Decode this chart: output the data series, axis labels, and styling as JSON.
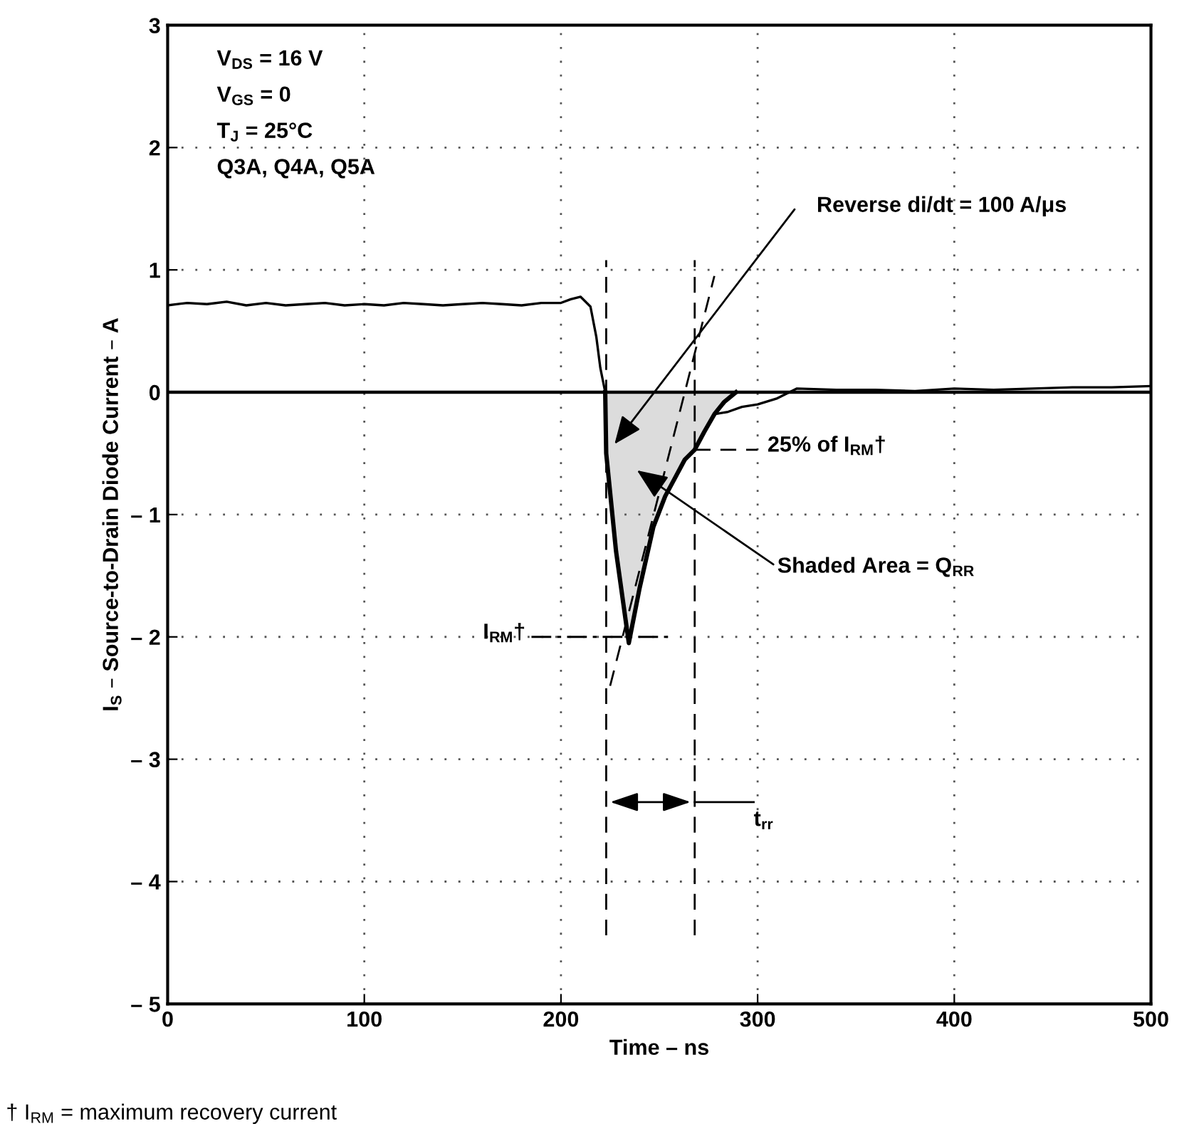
{
  "chart_data": {
    "type": "line",
    "xlabel": "Time – ns",
    "ylabel": "I$_{S}$ – Source-to-Drain Diode Current – A",
    "xlim": [
      0,
      500
    ],
    "ylim": [
      -5,
      3
    ],
    "xticks": [
      0,
      100,
      200,
      300,
      400,
      500
    ],
    "yticks": [
      {
        "value": -5,
        "label": "– 5"
      },
      {
        "value": -4,
        "label": "– 4"
      },
      {
        "value": -3,
        "label": "– 3"
      },
      {
        "value": -2,
        "label": "– 2"
      },
      {
        "value": -1,
        "label": "– 1"
      },
      0,
      1,
      2,
      3
    ],
    "grid": true,
    "series": [
      {
        "type": "area",
        "color": "#dcdcdc",
        "x": [
          222.5,
          223,
          228,
          234.5,
          240,
          247,
          253,
          258,
          263,
          268,
          273,
          278,
          283,
          289
        ],
        "values": [
          0,
          -0.5,
          -1.3,
          -2.05,
          -1.6,
          -1.1,
          -0.85,
          -0.7,
          -0.55,
          -0.47,
          -0.32,
          -0.18,
          -0.08,
          0
        ]
      },
      {
        "color": "#000000",
        "x": [
          0,
          10,
          20,
          30,
          40,
          50,
          60,
          70,
          80,
          90,
          100,
          110,
          120,
          130,
          140,
          150,
          160,
          170,
          180,
          190,
          200,
          205,
          210,
          215,
          218,
          220,
          222.5,
          223,
          228,
          234.5,
          240,
          247,
          253,
          258,
          263,
          268,
          273,
          278,
          285,
          292,
          300,
          310,
          320,
          340,
          360,
          380,
          400,
          420,
          440,
          460,
          480,
          500
        ],
        "values": [
          0.71,
          0.73,
          0.72,
          0.74,
          0.71,
          0.73,
          0.71,
          0.72,
          0.73,
          0.71,
          0.72,
          0.71,
          0.73,
          0.72,
          0.71,
          0.72,
          0.73,
          0.72,
          0.71,
          0.73,
          0.73,
          0.76,
          0.78,
          0.7,
          0.45,
          0.2,
          0,
          -0.5,
          -1.3,
          -2.05,
          -1.6,
          -1.1,
          -0.85,
          -0.7,
          -0.55,
          -0.47,
          -0.32,
          -0.18,
          -0.16,
          -0.12,
          -0.1,
          -0.05,
          0.03,
          0.02,
          0.02,
          0.01,
          0.03,
          0.02,
          0.03,
          0.04,
          0.04,
          0.05
        ]
      },
      {
        "type": "line",
        "color": "#000000",
        "line_style": "dashed",
        "x": [
          225,
          278
        ],
        "values": [
          -2.4,
          0.95
        ]
      }
    ],
    "ref_lines": [
      {
        "axis": "y",
        "value": 0,
        "color": "#000000",
        "line_style": "solid"
      },
      {
        "axis": "x",
        "value": 223,
        "color": "#000000",
        "line_style": "dashed"
      },
      {
        "axis": "x",
        "value": 268,
        "color": "#000000",
        "line_style": "dashed"
      },
      {
        "axis": "y",
        "value": -0.47,
        "label": "25% of I$_{RM}$†",
        "color": "#000000",
        "line_style": "dashed"
      },
      {
        "axis": "y",
        "value": -2,
        "label": "I$_{RM}$†",
        "color": "#000000",
        "line_style": "dashdot"
      }
    ],
    "annotations": [
      "V$_{DS}$ = 16 V",
      "V$_{GS}$ = 0",
      "T$_{J}$ = 25°C",
      "Q3A, Q4A, Q5A",
      {
        "text": "Reverse di/dt = 100 A/μs",
        "x": 226,
        "y": -0.45
      },
      "Shaded Area = Q$_{RR}$",
      {
        "text": "t$_{rr}$",
        "x": 268,
        "y": -3.35
      },
      "† I$_{RM}$ = maximum recovery current"
    ]
  }
}
